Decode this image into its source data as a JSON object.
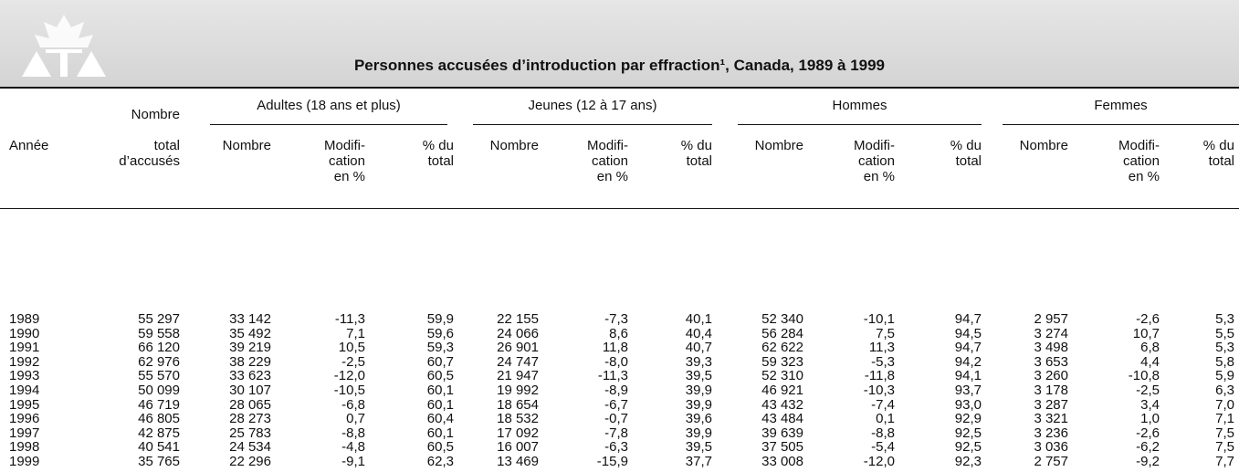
{
  "header": {
    "title": "Personnes accusées d’introduction par effraction¹, Canada, 1989 à 1999"
  },
  "table": {
    "groups": [
      "Adultes (18 ans et plus)",
      "Jeunes (12 à 17 ans)",
      "Hommes",
      "Femmes"
    ],
    "columns": [
      [
        "Année"
      ],
      [
        "Nombre",
        "total",
        "d’accusés"
      ],
      [
        "Nombre"
      ],
      [
        "Modifi-",
        "cation",
        "en %"
      ],
      [
        "% du",
        "total"
      ],
      [
        "Nombre"
      ],
      [
        "Modifi-",
        "cation",
        "en %"
      ],
      [
        "% du",
        "total"
      ],
      [
        "Nombre"
      ],
      [
        "Modifi-",
        "cation",
        "en %"
      ],
      [
        "% du",
        "total"
      ],
      [
        "Nombre"
      ],
      [
        "Modifi-",
        "cation",
        "en %"
      ],
      [
        "% du",
        "total"
      ]
    ],
    "rows": [
      [
        "1989",
        "55 297",
        "33 142",
        "-11,3",
        "59,9",
        "22 155",
        "-7,3",
        "40,1",
        "52 340",
        "-10,1",
        "94,7",
        "2 957",
        "-2,6",
        "5,3"
      ],
      [
        "1990",
        "59 558",
        "35 492",
        "7,1",
        "59,6",
        "24 066",
        "8,6",
        "40,4",
        "56 284",
        "7,5",
        "94,5",
        "3 274",
        "10,7",
        "5,5"
      ],
      [
        "1991",
        "66 120",
        "39 219",
        "10,5",
        "59,3",
        "26 901",
        "11,8",
        "40,7",
        "62 622",
        "11,3",
        "94,7",
        "3 498",
        "6,8",
        "5,3"
      ],
      [
        "1992",
        "62 976",
        "38 229",
        "-2,5",
        "60,7",
        "24 747",
        "-8,0",
        "39,3",
        "59 323",
        "-5,3",
        "94,2",
        "3 653",
        "4,4",
        "5,8"
      ],
      [
        "1993",
        "55 570",
        "33 623",
        "-12,0",
        "60,5",
        "21 947",
        "-11,3",
        "39,5",
        "52 310",
        "-11,8",
        "94,1",
        "3 260",
        "-10,8",
        "5,9"
      ],
      [
        "1994",
        "50 099",
        "30 107",
        "-10,5",
        "60,1",
        "19 992",
        "-8,9",
        "39,9",
        "46 921",
        "-10,3",
        "93,7",
        "3 178",
        "-2,5",
        "6,3"
      ],
      [
        "1995",
        "46 719",
        "28 065",
        "-6,8",
        "60,1",
        "18 654",
        "-6,7",
        "39,9",
        "43 432",
        "-7,4",
        "93,0",
        "3 287",
        "3,4",
        "7,0"
      ],
      [
        "1996",
        "46 805",
        "28 273",
        "0,7",
        "60,4",
        "18 532",
        "-0,7",
        "39,6",
        "43 484",
        "0,1",
        "92,9",
        "3 321",
        "1,0",
        "7,1"
      ],
      [
        "1997",
        "42 875",
        "25 783",
        "-8,8",
        "60,1",
        "17 092",
        "-7,8",
        "39,9",
        "39 639",
        "-8,8",
        "92,5",
        "3 236",
        "-2,6",
        "7,5"
      ],
      [
        "1998",
        "40 541",
        "24 534",
        "-4,8",
        "60,5",
        "16 007",
        "-6,3",
        "39,5",
        "37 505",
        "-5,4",
        "92,5",
        "3 036",
        "-6,2",
        "7,5"
      ],
      [
        "1999",
        "35 765",
        "22 296",
        "-9,1",
        "62,3",
        "13 469",
        "-15,9",
        "37,7",
        "33 008",
        "-12,0",
        "92,3",
        "2 757",
        "-9,2",
        "7,7"
      ]
    ]
  }
}
